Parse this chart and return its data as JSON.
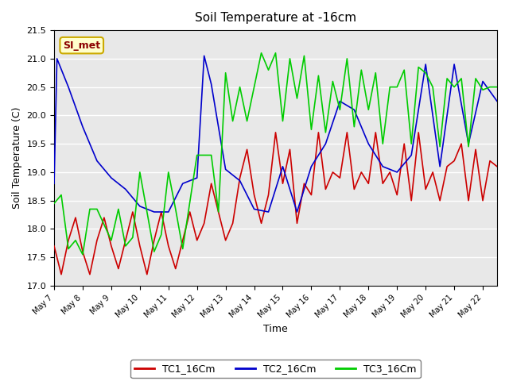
{
  "title": "Soil Temperature at -16cm",
  "xlabel": "Time",
  "ylabel": "Soil Temperature (C)",
  "ylim": [
    17.0,
    21.5
  ],
  "xlim": [
    0,
    15.5
  ],
  "background_color": "#ffffff",
  "plot_bg_color": "#e8e8e8",
  "grid_color": "#ffffff",
  "annotation_text": "SI_met",
  "annotation_bg": "#ffffcc",
  "annotation_border": "#ccaa00",
  "legend_labels": [
    "TC1_16Cm",
    "TC2_16Cm",
    "TC3_16Cm"
  ],
  "line_colors": [
    "#cc0000",
    "#0000cc",
    "#00cc00"
  ],
  "tc1_x": [
    0,
    0.25,
    0.5,
    0.75,
    1,
    1.25,
    1.5,
    1.75,
    2,
    2.25,
    2.5,
    2.75,
    3,
    3.25,
    3.5,
    3.75,
    4,
    4.25,
    4.5,
    4.75,
    5,
    5.25,
    5.5,
    5.75,
    6,
    6.25,
    6.5,
    6.75,
    7,
    7.25,
    7.5,
    7.75,
    8,
    8.25,
    8.5,
    8.75,
    9,
    9.25,
    9.5,
    9.75,
    10,
    10.25,
    10.5,
    10.75,
    11,
    11.25,
    11.5,
    11.75,
    12,
    12.25,
    12.5,
    12.75,
    13,
    13.25,
    13.5,
    13.75,
    14,
    14.25,
    14.5,
    14.75,
    15,
    15.25,
    15.5
  ],
  "tc1_y": [
    17.7,
    17.2,
    17.8,
    18.2,
    17.6,
    17.2,
    17.8,
    18.2,
    17.7,
    17.3,
    17.8,
    18.3,
    17.7,
    17.2,
    17.8,
    18.3,
    17.7,
    17.3,
    17.8,
    18.3,
    17.8,
    18.1,
    18.8,
    18.3,
    17.8,
    18.1,
    18.9,
    19.4,
    18.6,
    18.1,
    18.6,
    19.7,
    18.8,
    19.4,
    18.1,
    18.8,
    18.6,
    19.7,
    18.7,
    19.0,
    18.9,
    19.7,
    18.7,
    19.0,
    18.8,
    19.7,
    18.8,
    19.0,
    18.6,
    19.5,
    18.5,
    19.7,
    18.7,
    19.0,
    18.5,
    19.1,
    19.2,
    19.5,
    18.5,
    19.4,
    18.5,
    19.2,
    19.1
  ],
  "tc2_x": [
    0,
    0.1,
    0.5,
    1,
    1.5,
    2,
    2.5,
    3,
    3.5,
    4,
    4.5,
    5,
    5.25,
    5.5,
    6,
    6.5,
    7,
    7.5,
    8,
    8.5,
    9,
    9.5,
    10,
    10.5,
    11,
    11.5,
    12,
    12.5,
    13,
    13.5,
    14,
    14.5,
    15,
    15.5
  ],
  "tc2_y": [
    18.8,
    21.0,
    20.5,
    19.8,
    19.2,
    18.9,
    18.7,
    18.4,
    18.3,
    18.3,
    18.8,
    18.9,
    21.05,
    20.55,
    19.05,
    18.85,
    18.35,
    18.3,
    19.1,
    18.3,
    19.1,
    19.5,
    20.25,
    20.1,
    19.5,
    19.1,
    19.0,
    19.3,
    20.9,
    19.1,
    20.9,
    19.5,
    20.6,
    20.25
  ],
  "tc3_x": [
    0,
    0.25,
    0.5,
    0.75,
    1,
    1.25,
    1.5,
    2,
    2.25,
    2.5,
    2.75,
    3,
    3.25,
    3.5,
    3.75,
    4,
    4.25,
    4.5,
    5,
    5.5,
    5.75,
    6,
    6.25,
    6.5,
    6.75,
    7,
    7.25,
    7.5,
    7.75,
    8,
    8.25,
    8.5,
    8.75,
    9,
    9.25,
    9.5,
    9.75,
    10,
    10.25,
    10.5,
    10.75,
    11,
    11.25,
    11.5,
    11.75,
    12,
    12.25,
    12.5,
    12.75,
    13,
    13.25,
    13.5,
    13.75,
    14,
    14.25,
    14.5,
    14.75,
    15,
    15.25,
    15.5
  ],
  "tc3_y": [
    18.45,
    18.6,
    17.65,
    17.8,
    17.55,
    18.35,
    18.35,
    17.8,
    18.35,
    17.7,
    17.85,
    19.0,
    18.3,
    17.6,
    17.9,
    19.0,
    18.35,
    17.65,
    19.3,
    19.3,
    18.3,
    20.75,
    19.9,
    20.5,
    19.9,
    20.5,
    21.1,
    20.8,
    21.1,
    19.9,
    21.0,
    20.3,
    21.05,
    19.75,
    20.7,
    19.7,
    20.6,
    20.1,
    21.0,
    19.8,
    20.8,
    20.1,
    20.75,
    19.5,
    20.5,
    20.5,
    20.8,
    19.5,
    20.85,
    20.75,
    20.5,
    19.45,
    20.65,
    20.5,
    20.65,
    19.45,
    20.65,
    20.45,
    20.5,
    20.5
  ]
}
